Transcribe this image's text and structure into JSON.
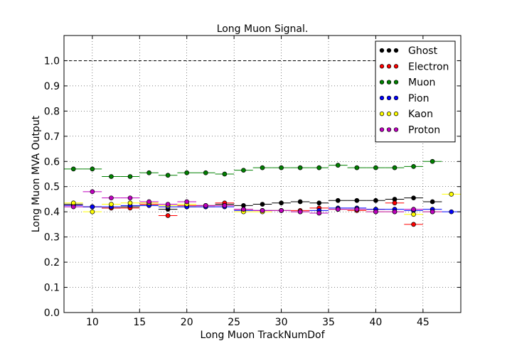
{
  "chart_data": {
    "type": "scatter",
    "title": "Long Muon Signal.",
    "xlabel": "Long Muon TrackNumDof",
    "ylabel": "Long Muon MVA Output",
    "xlim": [
      7,
      49
    ],
    "ylim": [
      0,
      1.1
    ],
    "x_ticks": [
      10,
      15,
      20,
      25,
      30,
      35,
      40,
      45
    ],
    "y_ticks": [
      0.0,
      0.1,
      0.2,
      0.3,
      0.4,
      0.5,
      0.6,
      0.7,
      0.8,
      0.9,
      1.0
    ],
    "x_tick_labels": [
      "10",
      "15",
      "20",
      "25",
      "30",
      "35",
      "40",
      "45"
    ],
    "y_tick_labels": [
      "0.0",
      "0.1",
      "0.2",
      "0.3",
      "0.4",
      "0.5",
      "0.6",
      "0.7",
      "0.8",
      "0.9",
      "1.0"
    ],
    "grid": true,
    "legend_position": "top-right",
    "reference_line": {
      "y": 1.0,
      "style": "dashed"
    },
    "bin_half_width": 1,
    "series": [
      {
        "name": "Ghost",
        "color": "#000000",
        "x": [
          8,
          10,
          12,
          14,
          16,
          18,
          20,
          22,
          24,
          26,
          28,
          30,
          32,
          34,
          36,
          38,
          40,
          42,
          44,
          46
        ],
        "y": [
          0.43,
          0.42,
          0.415,
          0.42,
          0.425,
          0.41,
          0.42,
          0.425,
          0.43,
          0.425,
          0.43,
          0.435,
          0.44,
          0.435,
          0.445,
          0.445,
          0.445,
          0.45,
          0.455,
          0.44
        ]
      },
      {
        "name": "Electron",
        "color": "#ff0000",
        "x": [
          8,
          10,
          12,
          14,
          16,
          18,
          20,
          22,
          24,
          26,
          28,
          30,
          32,
          34,
          36,
          38,
          40,
          42,
          44
        ],
        "y": [
          0.425,
          0.42,
          0.415,
          0.415,
          0.43,
          0.385,
          0.425,
          0.42,
          0.435,
          0.41,
          0.405,
          0.405,
          0.405,
          0.415,
          0.41,
          0.405,
          0.41,
          0.435,
          0.35
        ]
      },
      {
        "name": "Muon",
        "color": "#008000",
        "x": [
          8,
          10,
          12,
          14,
          16,
          18,
          20,
          22,
          24,
          26,
          28,
          30,
          32,
          34,
          36,
          38,
          40,
          42,
          44,
          46
        ],
        "y": [
          0.57,
          0.57,
          0.54,
          0.54,
          0.555,
          0.545,
          0.555,
          0.555,
          0.55,
          0.565,
          0.575,
          0.575,
          0.575,
          0.575,
          0.585,
          0.575,
          0.575,
          0.575,
          0.58,
          0.6
        ]
      },
      {
        "name": "Pion",
        "color": "#0000ff",
        "x": [
          8,
          10,
          12,
          14,
          16,
          18,
          20,
          22,
          24,
          26,
          28,
          30,
          32,
          34,
          36,
          38,
          40,
          42,
          44,
          46,
          48
        ],
        "y": [
          0.425,
          0.42,
          0.42,
          0.425,
          0.425,
          0.42,
          0.42,
          0.42,
          0.42,
          0.405,
          0.405,
          0.405,
          0.4,
          0.405,
          0.415,
          0.415,
          0.41,
          0.41,
          0.405,
          0.41,
          0.4
        ]
      },
      {
        "name": "Kaon",
        "color": "#ffff00",
        "x": [
          8,
          10,
          12,
          14,
          16,
          18,
          20,
          22,
          24,
          26,
          28,
          30,
          32,
          34,
          36,
          38,
          40,
          42,
          44,
          46,
          48
        ],
        "y": [
          0.435,
          0.4,
          0.43,
          0.435,
          0.435,
          0.425,
          0.43,
          0.425,
          0.425,
          0.4,
          0.4,
          0.405,
          0.4,
          0.395,
          0.41,
          0.41,
          0.4,
          0.4,
          0.39,
          0.4,
          0.47
        ]
      },
      {
        "name": "Proton",
        "color": "#bf00bf",
        "x": [
          8,
          10,
          12,
          14,
          16,
          18,
          20,
          22,
          24,
          26,
          28,
          30,
          32,
          34,
          36,
          38,
          40,
          42,
          44,
          46
        ],
        "y": [
          0.42,
          0.48,
          0.455,
          0.455,
          0.44,
          0.43,
          0.44,
          0.425,
          0.425,
          0.41,
          0.405,
          0.405,
          0.4,
          0.395,
          0.41,
          0.41,
          0.4,
          0.4,
          0.41,
          0.4
        ]
      }
    ]
  }
}
